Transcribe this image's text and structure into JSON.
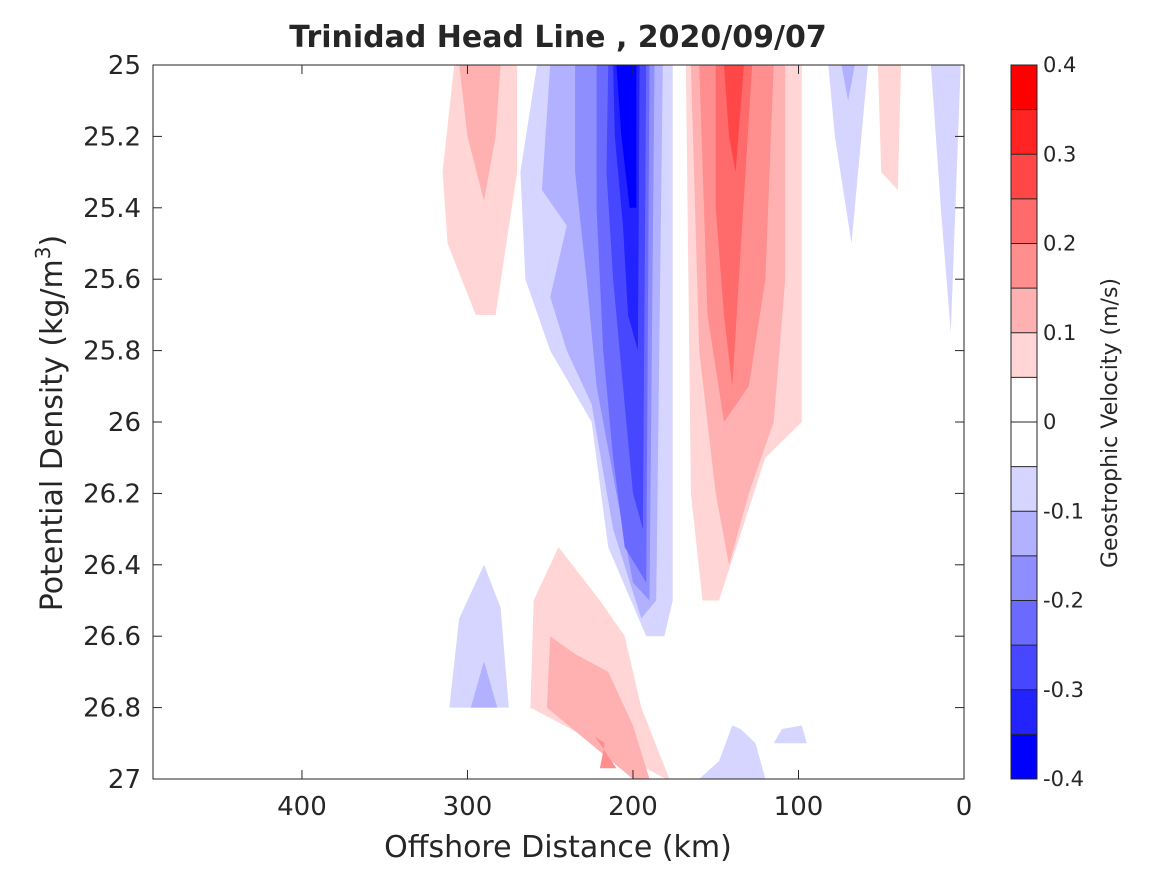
{
  "chart_data": {
    "type": "contour",
    "title": "Trinidad Head Line , 2020/09/07",
    "xlabel": "Offshore Distance (km)",
    "ylabel": {
      "main": "Potential Density (kg/m",
      "superscript": "3",
      "close": ")"
    },
    "x_axis": {
      "direction": "reversed",
      "lim": [
        490,
        0
      ],
      "ticks": [
        400,
        300,
        200,
        100,
        0
      ],
      "tick_labels": [
        "400",
        "300",
        "200",
        "100",
        "0"
      ]
    },
    "y_axis": {
      "direction": "reversed",
      "lim": [
        25,
        27
      ],
      "ticks": [
        25,
        25.2,
        25.4,
        25.6,
        25.8,
        26,
        26.2,
        26.4,
        26.6,
        26.8,
        27
      ],
      "tick_labels": [
        "25",
        "25.2",
        "25.4",
        "25.6",
        "25.8",
        "26",
        "26.2",
        "26.4",
        "26.6",
        "26.8",
        "27"
      ]
    },
    "colorbar": {
      "label": "Geostrophic Velocity (m/s)",
      "lim": [
        -0.4,
        0.4
      ],
      "levels": [
        -0.4,
        -0.35,
        -0.3,
        -0.25,
        -0.2,
        -0.15,
        -0.1,
        -0.05,
        0,
        0.05,
        0.1,
        0.15,
        0.2,
        0.25,
        0.3,
        0.35,
        0.4
      ],
      "colors": [
        "#0000ff",
        "#2323ff",
        "#4747ff",
        "#6a6aff",
        "#8e8eff",
        "#b1b1ff",
        "#d5d5ff",
        "#ffffff",
        "#ffffff",
        "#ffd5d5",
        "#ffb1b1",
        "#ff8e8e",
        "#ff6a6a",
        "#ff4747",
        "#ff2323",
        "#ff0000"
      ],
      "ticks": [
        -0.4,
        -0.3,
        -0.2,
        -0.1,
        0,
        0.1,
        0.2,
        0.3,
        0.4
      ],
      "tick_labels": [
        "-0.4",
        "-0.3",
        "-0.2",
        "-0.1",
        "0",
        "0.1",
        "0.2",
        "0.3",
        "0.4"
      ]
    },
    "regions": [
      {
        "name": "positive-band-300km",
        "color": "#ffd5d5",
        "points": [
          [
            308,
            25
          ],
          [
            270,
            25
          ],
          [
            270,
            25.3
          ],
          [
            283,
            25.7
          ],
          [
            295,
            25.7
          ],
          [
            312,
            25.5
          ],
          [
            315,
            25.3
          ]
        ]
      },
      {
        "name": "positive-band-300km",
        "color": "#ffb1b1",
        "points": [
          [
            305,
            25
          ],
          [
            280,
            25
          ],
          [
            283,
            25.2
          ],
          [
            290,
            25.38
          ],
          [
            300,
            25.2
          ]
        ]
      },
      {
        "name": "negative-band-core",
        "color": "#d5d5ff",
        "points": [
          [
            258,
            25
          ],
          [
            176,
            25
          ],
          [
            176,
            26.5
          ],
          [
            181,
            26.6
          ],
          [
            192,
            26.6
          ],
          [
            215,
            26.35
          ],
          [
            225,
            26
          ],
          [
            250,
            25.8
          ],
          [
            265,
            25.6
          ],
          [
            268,
            25.3
          ]
        ]
      },
      {
        "name": "negative-band-core",
        "color": "#b1b1ff",
        "points": [
          [
            250,
            25
          ],
          [
            182,
            25
          ],
          [
            186,
            26.5
          ],
          [
            195,
            26.55
          ],
          [
            212,
            26.3
          ],
          [
            225,
            25.95
          ],
          [
            240,
            25.8
          ],
          [
            250,
            25.65
          ],
          [
            240,
            25.45
          ],
          [
            255,
            25.35
          ]
        ]
      },
      {
        "name": "negative-band-core",
        "color": "#8e8eff",
        "points": [
          [
            235,
            25
          ],
          [
            187,
            25
          ],
          [
            190,
            26.5
          ],
          [
            200,
            26.45
          ],
          [
            210,
            26.2
          ],
          [
            222,
            25.9
          ],
          [
            228,
            25.6
          ],
          [
            235,
            25.3
          ]
        ]
      },
      {
        "name": "negative-band-core",
        "color": "#6a6aff",
        "points": [
          [
            222,
            25
          ],
          [
            190,
            25
          ],
          [
            192,
            26.45
          ],
          [
            205,
            26.35
          ],
          [
            212,
            26.1
          ],
          [
            218,
            25.8
          ],
          [
            222,
            25.4
          ]
        ]
      },
      {
        "name": "negative-band-core",
        "color": "#4747ff",
        "points": [
          [
            215,
            25
          ],
          [
            192,
            25
          ],
          [
            194,
            26.3
          ],
          [
            200,
            26.2
          ],
          [
            206,
            25.9
          ],
          [
            212,
            25.6
          ],
          [
            216,
            25.3
          ]
        ]
      },
      {
        "name": "negative-band-core",
        "color": "#2323ff",
        "points": [
          [
            212,
            25
          ],
          [
            196,
            25
          ],
          [
            197,
            25.8
          ],
          [
            203,
            25.7
          ],
          [
            206,
            25.45
          ],
          [
            211,
            25.2
          ]
        ]
      },
      {
        "name": "negative-band-core",
        "color": "#0000ff",
        "points": [
          [
            210,
            25
          ],
          [
            198,
            25
          ],
          [
            198,
            25.4
          ],
          [
            202,
            25.4
          ],
          [
            207,
            25.2
          ]
        ]
      },
      {
        "name": "positive-band-140km",
        "color": "#ffd5d5",
        "points": [
          [
            168,
            25
          ],
          [
            98,
            25
          ],
          [
            98,
            26
          ],
          [
            120,
            26.1
          ],
          [
            148,
            26.5
          ],
          [
            158,
            26.5
          ],
          [
            165,
            26.2
          ]
        ]
      },
      {
        "name": "positive-band-140km",
        "color": "#ffb1b1",
        "points": [
          [
            165,
            25
          ],
          [
            108,
            25
          ],
          [
            108,
            25.6
          ],
          [
            115,
            26.0
          ],
          [
            130,
            26.2
          ],
          [
            142,
            26.4
          ],
          [
            150,
            26.2
          ],
          [
            160,
            25.8
          ]
        ]
      },
      {
        "name": "positive-band-140km",
        "color": "#ff8e8e",
        "points": [
          [
            160,
            25
          ],
          [
            115,
            25
          ],
          [
            120,
            25.6
          ],
          [
            130,
            25.9
          ],
          [
            145,
            26.0
          ],
          [
            155,
            25.7
          ]
        ]
      },
      {
        "name": "positive-band-140km",
        "color": "#ff6a6a",
        "points": [
          [
            150,
            25
          ],
          [
            128,
            25
          ],
          [
            140,
            25.9
          ],
          [
            145,
            25.7
          ],
          [
            150,
            25.4
          ]
        ]
      },
      {
        "name": "positive-band-140km",
        "color": "#ff4747",
        "points": [
          [
            145,
            25
          ],
          [
            133,
            25
          ],
          [
            138,
            25.3
          ],
          [
            142,
            25.2
          ]
        ]
      },
      {
        "name": "negative-patch-70km",
        "color": "#d5d5ff",
        "points": [
          [
            82,
            25
          ],
          [
            58,
            25
          ],
          [
            68,
            25.5
          ],
          [
            78,
            25.2
          ]
        ]
      },
      {
        "name": "negative-patch-70km",
        "color": "#b1b1ff",
        "points": [
          [
            74,
            25
          ],
          [
            66,
            25
          ],
          [
            70,
            25.1
          ]
        ]
      },
      {
        "name": "positive-patch-45km",
        "color": "#ffd5d5",
        "points": [
          [
            52,
            25
          ],
          [
            38,
            25
          ],
          [
            40,
            25.35
          ],
          [
            50,
            25.3
          ]
        ]
      },
      {
        "name": "negative-patch-10km",
        "color": "#d5d5ff",
        "points": [
          [
            20,
            25
          ],
          [
            2,
            25
          ],
          [
            8,
            25.75
          ],
          [
            14,
            25.4
          ]
        ]
      },
      {
        "name": "negative-patch-deep-west",
        "color": "#d5d5ff",
        "points": [
          [
            311,
            26.8
          ],
          [
            275,
            26.8
          ],
          [
            280,
            26.52
          ],
          [
            290,
            26.4
          ],
          [
            305,
            26.55
          ]
        ]
      },
      {
        "name": "negative-patch-deep-west",
        "color": "#b1b1ff",
        "points": [
          [
            298,
            26.8
          ],
          [
            282,
            26.8
          ],
          [
            290,
            26.67
          ]
        ]
      },
      {
        "name": "positive-patch-deep",
        "color": "#ffd5d5",
        "points": [
          [
            262,
            26.8
          ],
          [
            180,
            27
          ],
          [
            178,
            27
          ],
          [
            195,
            26.8
          ],
          [
            205,
            26.6
          ],
          [
            220,
            26.5
          ],
          [
            245,
            26.35
          ],
          [
            260,
            26.5
          ]
        ]
      },
      {
        "name": "positive-patch-deep",
        "color": "#ffb1b1",
        "points": [
          [
            252,
            26.8
          ],
          [
            200,
            27
          ],
          [
            190,
            27
          ],
          [
            200,
            26.85
          ],
          [
            215,
            26.7
          ],
          [
            235,
            26.65
          ],
          [
            250,
            26.6
          ]
        ]
      },
      {
        "name": "positive-patch-deep",
        "color": "#ff8e8e",
        "points": [
          [
            223,
            26.88
          ],
          [
            210,
            26.97
          ],
          [
            220,
            26.97
          ],
          [
            217,
            26.9
          ]
        ]
      },
      {
        "name": "negative-patch-deep-east",
        "color": "#d5d5ff",
        "points": [
          [
            160,
            27
          ],
          [
            120,
            27
          ],
          [
            126,
            26.9
          ],
          [
            135,
            26.86
          ],
          [
            140,
            26.85
          ],
          [
            148,
            26.95
          ]
        ]
      },
      {
        "name": "negative-patch-deep-east",
        "color": "#d5d5ff",
        "points": [
          [
            115,
            26.9
          ],
          [
            95,
            26.9
          ],
          [
            98,
            26.85
          ],
          [
            110,
            26.86
          ]
        ]
      }
    ]
  }
}
